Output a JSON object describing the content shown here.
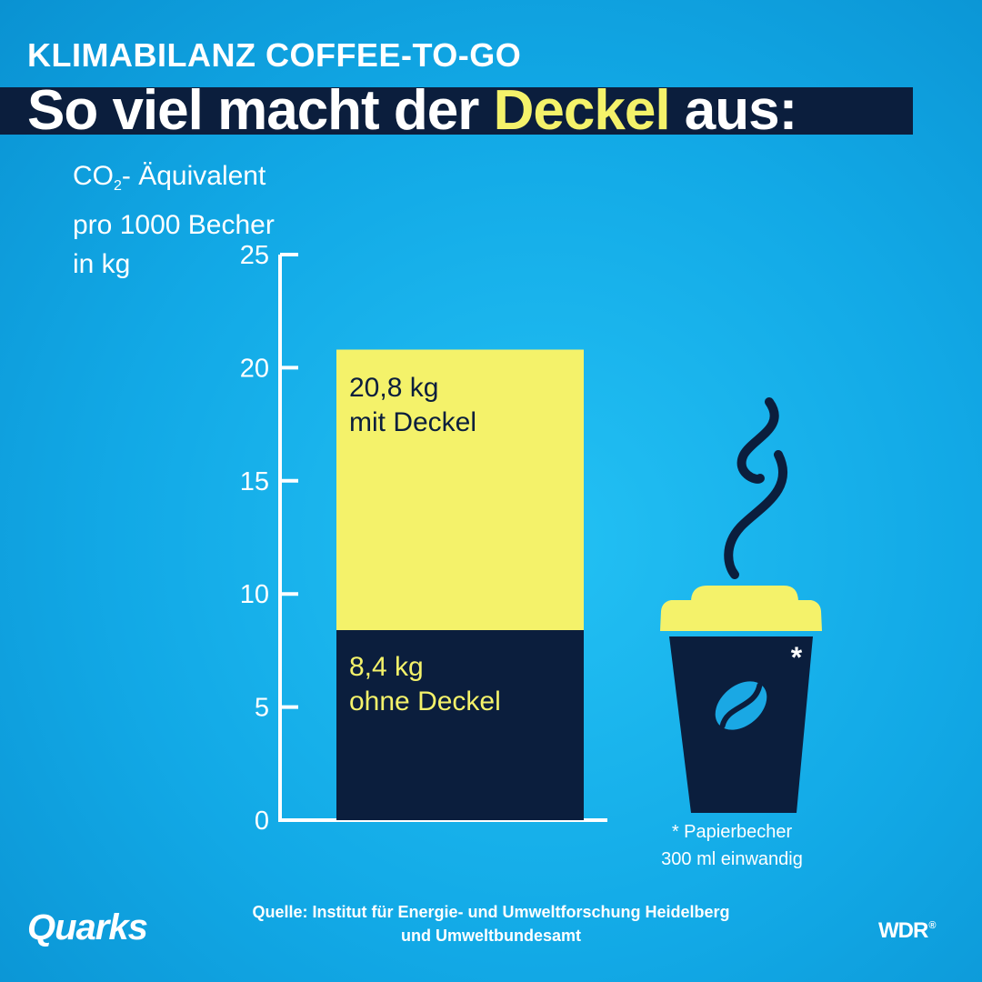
{
  "kicker": "KLIMABILANZ COFFEE-TO-GO",
  "headline": {
    "before": "So viel macht der ",
    "highlight": "Deckel",
    "after": " aus:"
  },
  "ylabel": {
    "line1_pre": "CO",
    "line1_sub": "2",
    "line1_post": "- Äquivalent",
    "line2": "pro 1000 Becher",
    "line3": "in kg"
  },
  "chart_data": {
    "type": "bar",
    "stacked": true,
    "categories": [
      "Papierbecher 300 ml einwandig"
    ],
    "series": [
      {
        "name": "ohne Deckel",
        "value": 8.4,
        "label_value": "8,4 kg",
        "label_text": "ohne Deckel",
        "color": "#0b1e3d"
      },
      {
        "name": "mit Deckel",
        "value": 20.8,
        "label_value": "20,8 kg",
        "label_text": "mit Deckel",
        "color": "#f4f26a"
      }
    ],
    "ylim": [
      0,
      25
    ],
    "yticks": [
      0,
      5,
      10,
      15,
      20,
      25
    ],
    "ylabel": "CO2- Äquivalent pro 1000 Becher in kg",
    "grid": false
  },
  "cup": {
    "asterisk": "*",
    "note_line1": "* Papierbecher",
    "note_line2": "300 ml einwandig",
    "lid_color": "#f4f26a",
    "body_color": "#0b1e3d",
    "bean_color": "#1aa8e4"
  },
  "source": {
    "line1": "Quelle: Institut für Energie- und Umweltforschung Heidelberg",
    "line2": "und Umweltbundesamt"
  },
  "brand": {
    "left": "Quarks",
    "right": "WDR",
    "right_mark": "®"
  },
  "colors": {
    "background": "#14aae6",
    "dark": "#0b1e3d",
    "accent": "#f4f26a"
  }
}
